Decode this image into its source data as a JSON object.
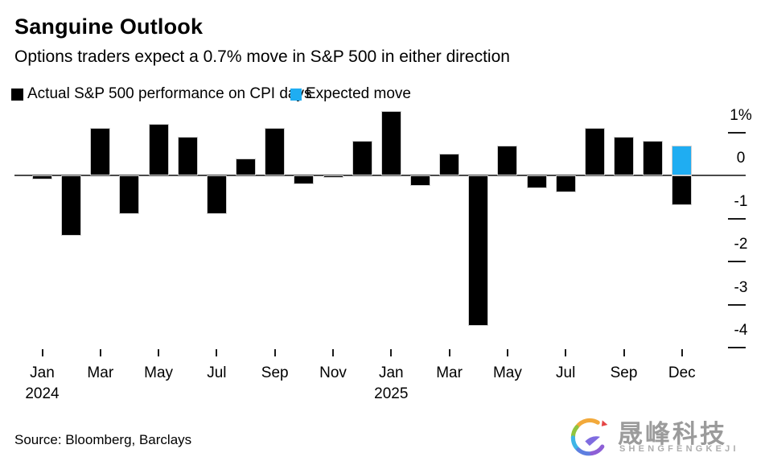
{
  "header": {
    "title": "Sanguine Outlook",
    "subtitle": "Options traders expect a 0.7% move in S&P 500 in either direction"
  },
  "legend": {
    "actual_label": "Actual S&P 500 performance on CPI days",
    "expected_label": "Expected move"
  },
  "footer": {
    "source": "Source: Bloomberg, Barclays",
    "logo_cn": "晟峰科技",
    "logo_en": "SHENGFENGKEJI"
  },
  "chart_data": {
    "type": "bar",
    "title": "Sanguine Outlook",
    "unit": "%",
    "ylim": [
      -4.3,
      1.6
    ],
    "grid": false,
    "legend_position": "top",
    "actual_color": "#000000",
    "expected_color": "#1fadf2",
    "axis_color": "#4a4a4a",
    "y_axis": {
      "side": "right",
      "ticks": [
        {
          "label": "1%",
          "value": 1
        },
        {
          "label": "0",
          "value": 0
        },
        {
          "label": "-1",
          "value": -1
        },
        {
          "label": "-2",
          "value": -2
        },
        {
          "label": "-3",
          "value": -3
        },
        {
          "label": "-4",
          "value": -4
        }
      ]
    },
    "x_axis": {
      "ticks": [
        {
          "index": 0,
          "label": "Jan",
          "year": "2024"
        },
        {
          "index": 2,
          "label": "Mar"
        },
        {
          "index": 4,
          "label": "May"
        },
        {
          "index": 6,
          "label": "Jul"
        },
        {
          "index": 8,
          "label": "Sep"
        },
        {
          "index": 10,
          "label": "Nov"
        },
        {
          "index": 12,
          "label": "Jan",
          "year": "2025"
        },
        {
          "index": 14,
          "label": "Mar"
        },
        {
          "index": 16,
          "label": "May"
        },
        {
          "index": 18,
          "label": "Jul"
        },
        {
          "index": 20,
          "label": "Sep"
        },
        {
          "index": 22,
          "label": "Dec"
        }
      ]
    },
    "bars": [
      {
        "index": 0,
        "month": "Jan 2024",
        "value": -0.1,
        "series": "actual"
      },
      {
        "index": 1,
        "month": "Feb 2024",
        "value": -1.4,
        "series": "actual"
      },
      {
        "index": 2,
        "month": "Mar 2024",
        "value": 1.1,
        "series": "actual"
      },
      {
        "index": 3,
        "month": "Apr 2024",
        "value": -0.9,
        "series": "actual"
      },
      {
        "index": 4,
        "month": "May 2024",
        "value": 1.2,
        "series": "actual"
      },
      {
        "index": 5,
        "month": "Jun 2024",
        "value": 0.9,
        "series": "actual"
      },
      {
        "index": 6,
        "month": "Jul 2024",
        "value": -0.9,
        "series": "actual"
      },
      {
        "index": 7,
        "month": "Aug 2024",
        "value": 0.4,
        "series": "actual"
      },
      {
        "index": 8,
        "month": "Sep 2024",
        "value": 1.1,
        "series": "actual"
      },
      {
        "index": 9,
        "month": "Oct 2024",
        "value": -0.2,
        "series": "actual"
      },
      {
        "index": 10,
        "month": "Nov 2024",
        "value": -0.05,
        "series": "actual"
      },
      {
        "index": 11,
        "month": "Dec 2024",
        "value": 0.8,
        "series": "actual"
      },
      {
        "index": 12,
        "month": "Jan 2025",
        "value": 1.5,
        "series": "actual"
      },
      {
        "index": 13,
        "month": "Feb 2025",
        "value": -0.25,
        "series": "actual"
      },
      {
        "index": 14,
        "month": "Mar 2025",
        "value": 0.5,
        "series": "actual"
      },
      {
        "index": 15,
        "month": "Apr 2025",
        "value": -3.5,
        "series": "actual"
      },
      {
        "index": 16,
        "month": "May 2025",
        "value": 0.7,
        "series": "actual"
      },
      {
        "index": 17,
        "month": "Jun 2025",
        "value": -0.3,
        "series": "actual"
      },
      {
        "index": 18,
        "month": "Jul 2025",
        "value": -0.4,
        "series": "actual"
      },
      {
        "index": 19,
        "month": "Aug 2025",
        "value": 1.1,
        "series": "actual"
      },
      {
        "index": 20,
        "month": "Sep 2025",
        "value": 0.9,
        "series": "actual"
      },
      {
        "index": 21,
        "month": "Oct 2025",
        "value": 0.8,
        "series": "actual"
      },
      {
        "index": 22,
        "month": "Dec 2025",
        "value": -0.7,
        "series": "actual"
      },
      {
        "index": 22,
        "month": "Dec 2025",
        "value": 0.7,
        "series": "expected"
      }
    ]
  }
}
